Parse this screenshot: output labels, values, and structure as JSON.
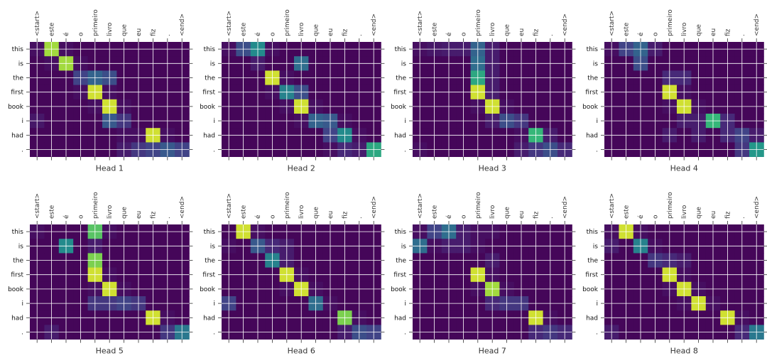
{
  "chart_data": {
    "type": "heatmap",
    "colormap": "viridis",
    "value_range": [
      0,
      1
    ],
    "grid": true,
    "x_tokens": [
      "<start>",
      "este",
      "é",
      "o",
      "primeiro",
      "livro",
      "que",
      "eu",
      "fiz",
      ".",
      "<end>"
    ],
    "y_tokens": [
      "this",
      "is",
      "the",
      "first",
      "book",
      "i",
      "had",
      "."
    ],
    "heads": [
      {
        "title": "Head 1",
        "values": [
          [
            0.05,
            0.9,
            0.05,
            0.02,
            0.02,
            0.02,
            0.02,
            0.02,
            0.02,
            0.02,
            0.02
          ],
          [
            0.02,
            0.05,
            0.9,
            0.05,
            0.02,
            0.02,
            0.02,
            0.02,
            0.02,
            0.02,
            0.02
          ],
          [
            0.02,
            0.02,
            0.02,
            0.25,
            0.4,
            0.3,
            0.02,
            0.02,
            0.02,
            0.02,
            0.02
          ],
          [
            0.02,
            0.02,
            0.02,
            0.05,
            0.95,
            0.05,
            0.02,
            0.02,
            0.02,
            0.02,
            0.02
          ],
          [
            0.02,
            0.02,
            0.02,
            0.02,
            0.05,
            0.95,
            0.05,
            0.02,
            0.02,
            0.02,
            0.02
          ],
          [
            0.08,
            0.02,
            0.02,
            0.02,
            0.02,
            0.35,
            0.2,
            0.02,
            0.02,
            0.02,
            0.02
          ],
          [
            0.02,
            0.02,
            0.02,
            0.02,
            0.02,
            0.02,
            0.05,
            0.05,
            0.95,
            0.05,
            0.02
          ],
          [
            0.02,
            0.02,
            0.02,
            0.02,
            0.02,
            0.02,
            0.1,
            0.2,
            0.25,
            0.35,
            0.25
          ]
        ]
      },
      {
        "title": "Head 2",
        "values": [
          [
            0.05,
            0.3,
            0.6,
            0.05,
            0.02,
            0.02,
            0.02,
            0.02,
            0.02,
            0.02,
            0.02
          ],
          [
            0.02,
            0.02,
            0.1,
            0.02,
            0.02,
            0.45,
            0.02,
            0.02,
            0.02,
            0.02,
            0.02
          ],
          [
            0.02,
            0.02,
            0.02,
            0.95,
            0.05,
            0.02,
            0.02,
            0.02,
            0.02,
            0.02,
            0.02
          ],
          [
            0.02,
            0.02,
            0.02,
            0.05,
            0.55,
            0.3,
            0.02,
            0.02,
            0.02,
            0.02,
            0.02
          ],
          [
            0.02,
            0.02,
            0.02,
            0.02,
            0.05,
            0.95,
            0.05,
            0.02,
            0.02,
            0.02,
            0.02
          ],
          [
            0.02,
            0.02,
            0.02,
            0.02,
            0.02,
            0.05,
            0.4,
            0.35,
            0.05,
            0.02,
            0.02
          ],
          [
            0.02,
            0.02,
            0.02,
            0.02,
            0.02,
            0.02,
            0.02,
            0.25,
            0.6,
            0.05,
            0.02
          ],
          [
            0.02,
            0.02,
            0.02,
            0.02,
            0.02,
            0.02,
            0.02,
            0.05,
            0.15,
            0.1,
            0.7
          ]
        ]
      },
      {
        "title": "Head 3",
        "values": [
          [
            0.05,
            0.08,
            0.1,
            0.1,
            0.4,
            0.1,
            0.02,
            0.02,
            0.02,
            0.02,
            0.02
          ],
          [
            0.02,
            0.02,
            0.02,
            0.02,
            0.45,
            0.1,
            0.02,
            0.02,
            0.02,
            0.02,
            0.02
          ],
          [
            0.02,
            0.02,
            0.02,
            0.02,
            0.7,
            0.1,
            0.02,
            0.02,
            0.02,
            0.02,
            0.02
          ],
          [
            0.02,
            0.02,
            0.02,
            0.02,
            0.95,
            0.1,
            0.02,
            0.02,
            0.02,
            0.02,
            0.02
          ],
          [
            0.02,
            0.02,
            0.02,
            0.02,
            0.05,
            0.95,
            0.05,
            0.02,
            0.02,
            0.02,
            0.02
          ],
          [
            0.02,
            0.02,
            0.02,
            0.02,
            0.02,
            0.1,
            0.3,
            0.2,
            0.02,
            0.02,
            0.02
          ],
          [
            0.02,
            0.02,
            0.02,
            0.02,
            0.02,
            0.02,
            0.02,
            0.05,
            0.75,
            0.1,
            0.02
          ],
          [
            0.05,
            0.02,
            0.02,
            0.02,
            0.02,
            0.02,
            0.02,
            0.1,
            0.2,
            0.3,
            0.15
          ]
        ]
      },
      {
        "title": "Head 4",
        "values": [
          [
            0.05,
            0.25,
            0.4,
            0.1,
            0.02,
            0.02,
            0.02,
            0.02,
            0.02,
            0.02,
            0.02
          ],
          [
            0.02,
            0.02,
            0.3,
            0.02,
            0.02,
            0.02,
            0.02,
            0.02,
            0.02,
            0.02,
            0.02
          ],
          [
            0.02,
            0.02,
            0.02,
            0.02,
            0.15,
            0.15,
            0.02,
            0.02,
            0.02,
            0.02,
            0.02
          ],
          [
            0.02,
            0.02,
            0.02,
            0.02,
            0.95,
            0.05,
            0.02,
            0.02,
            0.02,
            0.02,
            0.02
          ],
          [
            0.02,
            0.02,
            0.02,
            0.02,
            0.05,
            0.95,
            0.05,
            0.02,
            0.02,
            0.02,
            0.02
          ],
          [
            0.02,
            0.02,
            0.02,
            0.02,
            0.02,
            0.1,
            0.1,
            0.75,
            0.15,
            0.02,
            0.02
          ],
          [
            0.02,
            0.02,
            0.02,
            0.02,
            0.1,
            0.02,
            0.1,
            0.02,
            0.15,
            0.25,
            0.1
          ],
          [
            0.02,
            0.02,
            0.02,
            0.02,
            0.02,
            0.02,
            0.02,
            0.02,
            0.02,
            0.2,
            0.65
          ]
        ]
      },
      {
        "title": "Head 5",
        "values": [
          [
            0.05,
            0.02,
            0.02,
            0.02,
            0.8,
            0.05,
            0.02,
            0.02,
            0.02,
            0.02,
            0.02
          ],
          [
            0.02,
            0.02,
            0.6,
            0.02,
            0.1,
            0.02,
            0.02,
            0.02,
            0.02,
            0.02,
            0.02
          ],
          [
            0.02,
            0.02,
            0.02,
            0.02,
            0.85,
            0.02,
            0.02,
            0.02,
            0.02,
            0.02,
            0.02
          ],
          [
            0.02,
            0.02,
            0.02,
            0.02,
            0.95,
            0.05,
            0.02,
            0.02,
            0.02,
            0.02,
            0.02
          ],
          [
            0.02,
            0.02,
            0.02,
            0.02,
            0.05,
            0.95,
            0.05,
            0.02,
            0.02,
            0.02,
            0.02
          ],
          [
            0.02,
            0.02,
            0.02,
            0.02,
            0.2,
            0.2,
            0.25,
            0.2,
            0.02,
            0.02,
            0.02
          ],
          [
            0.02,
            0.02,
            0.02,
            0.02,
            0.02,
            0.02,
            0.02,
            0.02,
            0.95,
            0.05,
            0.02
          ],
          [
            0.02,
            0.1,
            0.02,
            0.02,
            0.02,
            0.02,
            0.02,
            0.02,
            0.02,
            0.2,
            0.5
          ]
        ]
      },
      {
        "title": "Head 6",
        "values": [
          [
            0.02,
            0.95,
            0.05,
            0.02,
            0.02,
            0.02,
            0.02,
            0.02,
            0.02,
            0.02,
            0.02
          ],
          [
            0.05,
            0.02,
            0.35,
            0.15,
            0.1,
            0.02,
            0.02,
            0.02,
            0.02,
            0.02,
            0.02
          ],
          [
            0.02,
            0.02,
            0.02,
            0.55,
            0.1,
            0.02,
            0.02,
            0.02,
            0.02,
            0.02,
            0.02
          ],
          [
            0.02,
            0.02,
            0.02,
            0.02,
            0.95,
            0.05,
            0.02,
            0.02,
            0.02,
            0.02,
            0.02
          ],
          [
            0.02,
            0.02,
            0.02,
            0.02,
            0.05,
            0.95,
            0.05,
            0.02,
            0.02,
            0.02,
            0.02
          ],
          [
            0.25,
            0.02,
            0.02,
            0.02,
            0.02,
            0.02,
            0.45,
            0.05,
            0.02,
            0.02,
            0.02
          ],
          [
            0.02,
            0.02,
            0.02,
            0.02,
            0.02,
            0.02,
            0.02,
            0.02,
            0.85,
            0.05,
            0.02
          ],
          [
            0.02,
            0.02,
            0.02,
            0.02,
            0.02,
            0.02,
            0.02,
            0.02,
            0.1,
            0.3,
            0.25
          ]
        ]
      },
      {
        "title": "Head 7",
        "values": [
          [
            0.05,
            0.25,
            0.45,
            0.1,
            0.05,
            0.05,
            0.02,
            0.02,
            0.02,
            0.02,
            0.02
          ],
          [
            0.45,
            0.05,
            0.1,
            0.1,
            0.05,
            0.02,
            0.02,
            0.02,
            0.02,
            0.02,
            0.02
          ],
          [
            0.02,
            0.02,
            0.02,
            0.02,
            0.02,
            0.1,
            0.02,
            0.02,
            0.02,
            0.02,
            0.02
          ],
          [
            0.02,
            0.02,
            0.02,
            0.02,
            0.95,
            0.05,
            0.02,
            0.02,
            0.02,
            0.02,
            0.02
          ],
          [
            0.02,
            0.02,
            0.02,
            0.02,
            0.05,
            0.9,
            0.05,
            0.02,
            0.02,
            0.02,
            0.02
          ],
          [
            0.02,
            0.02,
            0.02,
            0.02,
            0.02,
            0.15,
            0.2,
            0.2,
            0.02,
            0.02,
            0.02
          ],
          [
            0.02,
            0.02,
            0.02,
            0.02,
            0.02,
            0.02,
            0.02,
            0.02,
            0.95,
            0.05,
            0.02
          ],
          [
            0.02,
            0.02,
            0.02,
            0.02,
            0.02,
            0.02,
            0.02,
            0.02,
            0.15,
            0.2,
            0.15
          ]
        ]
      },
      {
        "title": "Head 8",
        "values": [
          [
            0.05,
            0.95,
            0.05,
            0.02,
            0.02,
            0.02,
            0.02,
            0.02,
            0.02,
            0.02,
            0.02
          ],
          [
            0.1,
            0.02,
            0.55,
            0.05,
            0.02,
            0.02,
            0.02,
            0.02,
            0.02,
            0.02,
            0.02
          ],
          [
            0.02,
            0.02,
            0.02,
            0.2,
            0.15,
            0.1,
            0.02,
            0.02,
            0.02,
            0.02,
            0.02
          ],
          [
            0.02,
            0.02,
            0.02,
            0.02,
            0.95,
            0.05,
            0.02,
            0.02,
            0.02,
            0.02,
            0.02
          ],
          [
            0.02,
            0.02,
            0.02,
            0.02,
            0.05,
            0.95,
            0.05,
            0.02,
            0.02,
            0.02,
            0.02
          ],
          [
            0.02,
            0.02,
            0.02,
            0.02,
            0.02,
            0.05,
            0.95,
            0.05,
            0.02,
            0.02,
            0.02
          ],
          [
            0.02,
            0.02,
            0.02,
            0.02,
            0.02,
            0.02,
            0.02,
            0.02,
            0.95,
            0.05,
            0.02
          ],
          [
            0.1,
            0.02,
            0.02,
            0.02,
            0.02,
            0.02,
            0.02,
            0.02,
            0.02,
            0.15,
            0.5
          ]
        ]
      }
    ]
  }
}
